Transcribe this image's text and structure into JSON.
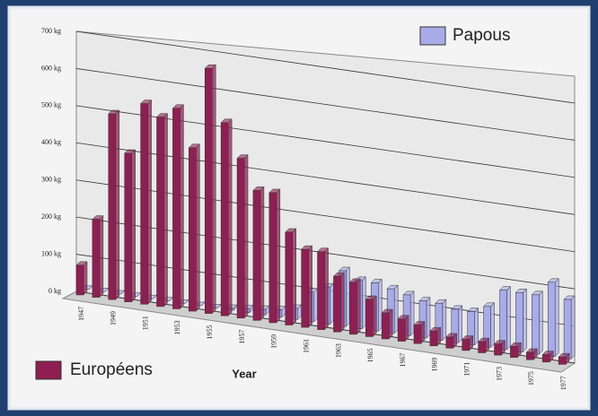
{
  "chart_data": {
    "type": "bar3d",
    "xlabel": "Year",
    "categories": [
      "1947",
      null,
      "1949",
      null,
      "1951",
      null,
      "1953",
      null,
      "1955",
      null,
      "1957",
      null,
      "1959",
      null,
      "1961",
      null,
      "1963",
      null,
      "1965",
      null,
      "1967",
      null,
      "1969",
      null,
      "1971",
      null,
      "1973",
      null,
      "1975",
      null,
      "1977"
    ],
    "series": [
      {
        "name": "Européens",
        "color": "#8e1f52",
        "values": [
          80,
          210,
          500,
          400,
          540,
          510,
          540,
          440,
          660,
          520,
          430,
          350,
          350,
          250,
          210,
          210,
          150,
          140,
          100,
          70,
          60,
          50,
          40,
          30,
          30,
          30,
          30,
          30,
          20,
          20,
          20
        ]
      },
      {
        "name": "Papous",
        "color": "#a9abe8",
        "values": [
          0,
          0,
          0,
          0,
          0,
          0,
          0,
          0,
          0,
          5,
          10,
          15,
          20,
          30,
          80,
          100,
          150,
          130,
          130,
          120,
          110,
          100,
          100,
          90,
          90,
          110,
          160,
          160,
          160,
          200,
          160
        ]
      }
    ],
    "ylim": [
      0,
      700
    ],
    "yticks": [
      {
        "value": 0,
        "label": "0 kg"
      },
      {
        "value": 100,
        "label": "100 kg"
      },
      {
        "value": 200,
        "label": "200 kg"
      },
      {
        "value": 300,
        "label": "300 kg"
      },
      {
        "value": 400,
        "label": "400 kg"
      },
      {
        "value": 500,
        "label": "500 kg"
      },
      {
        "value": 600,
        "label": "600 kg"
      },
      {
        "value": 700,
        "label": "700 kg"
      }
    ],
    "grid": true
  }
}
